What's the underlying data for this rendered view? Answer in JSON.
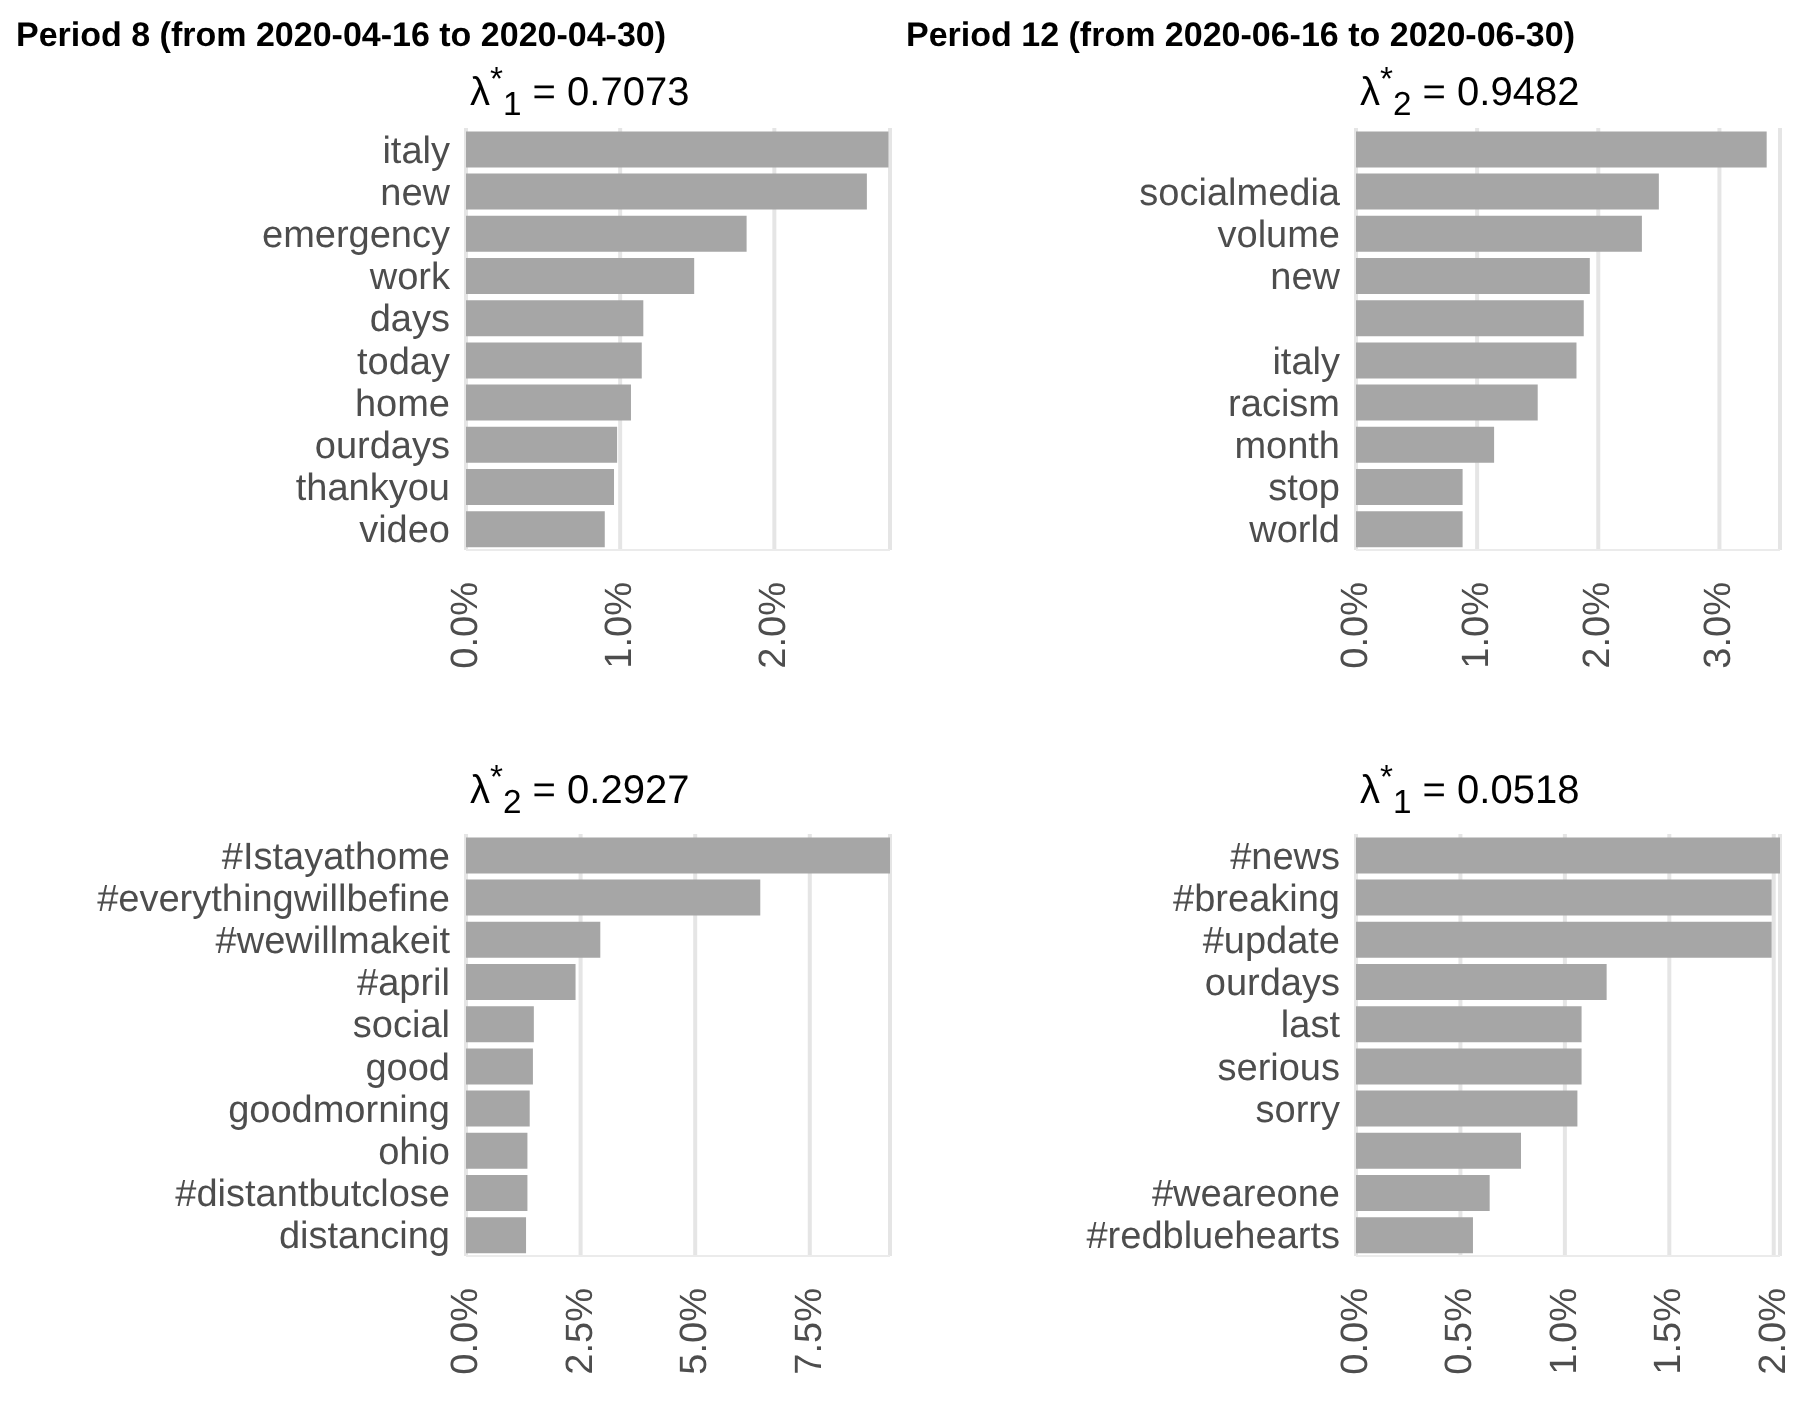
{
  "chart_data": [
    {
      "type": "bar",
      "orientation": "horizontal",
      "title": "Period 8 (from 2020-04-16 to 2020-04-30)",
      "subtitle": "λ$^{*}$$_{1}$ = 0.7073",
      "categories": [
        "italy",
        "new",
        "emergency",
        "work",
        "days",
        "today",
        "home",
        "ourdays",
        "thankyou",
        "video"
      ],
      "values": [
        2.74,
        2.6,
        1.82,
        1.48,
        1.15,
        1.14,
        1.07,
        0.98,
        0.96,
        0.9
      ],
      "color": "#a6a6a6",
      "xlim": [
        0,
        2.75
      ],
      "xticks": [
        {
          "value": 0,
          "label": "0.0%"
        },
        {
          "value": 1,
          "label": "1.0%"
        },
        {
          "value": 2,
          "label": "2.0%"
        }
      ],
      "grid": "x"
    },
    {
      "type": "bar",
      "orientation": "horizontal",
      "title": "Period 12 (from 2020-06-16 to 2020-06-30)",
      "subtitle": "λ$^{*}$$_{2}$ = 0.9482",
      "categories": [
        null,
        "socialmedia",
        "volume",
        "new",
        null,
        "italy",
        "racism",
        "month",
        "stop",
        "world"
      ],
      "values": [
        3.39,
        2.5,
        2.36,
        1.93,
        1.88,
        1.82,
        1.5,
        1.14,
        0.88,
        0.88
      ],
      "color": "#a6a6a6",
      "xlim": [
        0,
        3.5
      ],
      "xticks": [
        {
          "value": 0,
          "label": "0.0%"
        },
        {
          "value": 1,
          "label": "1.0%"
        },
        {
          "value": 2,
          "label": "2.0%"
        },
        {
          "value": 3,
          "label": "3.0%"
        }
      ],
      "grid": "x"
    },
    {
      "type": "bar",
      "orientation": "horizontal",
      "title": "λ$^{*}$$_{2}$ = 0.2927",
      "categories": [
        "#Istayathome",
        "#everythingwillbefine",
        "#wewillmakeit",
        "#april",
        "social",
        "good",
        "goodmorning",
        "ohio",
        "#distantbutclose",
        "distancing"
      ],
      "values": [
        9.25,
        6.42,
        2.93,
        2.39,
        1.48,
        1.46,
        1.39,
        1.34,
        1.34,
        1.31
      ],
      "color": "#a6a6a6",
      "xlim": [
        0,
        9.25
      ],
      "xticks": [
        {
          "value": 0,
          "label": "0.0%"
        },
        {
          "value": 2.5,
          "label": "2.5%"
        },
        {
          "value": 5,
          "label": "5.0%"
        },
        {
          "value": 7.5,
          "label": "7.5%"
        }
      ],
      "grid": "x"
    },
    {
      "type": "bar",
      "orientation": "horizontal",
      "title": "λ$^{*}$$_{1}$ = 0.0518",
      "categories": [
        "#news",
        "#breaking",
        "#update",
        "ourdays",
        "last",
        "serious",
        "sorry",
        null,
        "#weareone",
        "#redbluehearts"
      ],
      "values": [
        2.03,
        1.99,
        1.99,
        1.2,
        1.08,
        1.08,
        1.06,
        0.79,
        0.64,
        0.56
      ],
      "color": "#a6a6a6",
      "xlim": [
        0,
        2.03
      ],
      "xticks": [
        {
          "value": 0,
          "label": "0.0%"
        },
        {
          "value": 0.5,
          "label": "0.5%"
        },
        {
          "value": 1,
          "label": "1.0%"
        },
        {
          "value": 1.5,
          "label": "1.5%"
        },
        {
          "value": 2,
          "label": "2.0%"
        }
      ],
      "grid": "x"
    }
  ]
}
